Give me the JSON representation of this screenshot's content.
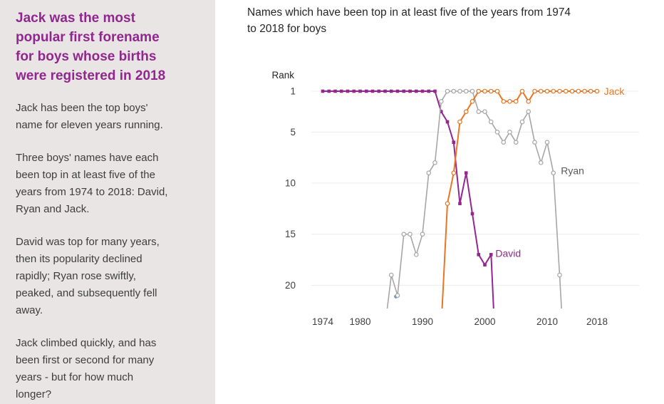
{
  "sidebar": {
    "heading": "Jack was the most\npopular first forename\nfor boys whose births\nwere registered in 2018",
    "paragraphs": [
      "Jack has been the top boys'\nname for eleven years running.",
      "Three boys' names have each\nbeen top in at least five of the\nyears from 1974 to 2018: David,\nRyan and Jack.",
      "David was top for many years,\nthen its popularity declined\nrapidly; Ryan rose swiftly,\npeaked, and subsequently fell\naway.",
      "Jack climbed quickly, and has\nbeen first or second for many\nyears - but for how much\nlonger?"
    ]
  },
  "chart_data": {
    "type": "line",
    "title": "Names which have been top in at least five of the years from 1974\nto 2018 for boys",
    "xlabel": "",
    "ylabel": "Rank",
    "x_ticks": [
      1974,
      1980,
      1990,
      2000,
      2010,
      2018
    ],
    "y_ticks": [
      1,
      5,
      10,
      15,
      20
    ],
    "xlim": [
      1974,
      2018
    ],
    "ylim": [
      1,
      21
    ],
    "y_axis_reversed": true,
    "grid": "horizontal",
    "legend_position": "line-end-labels",
    "series": [
      {
        "name": "David",
        "color": "#93278F",
        "marker": "filled-square",
        "years": [
          1974,
          1975,
          1976,
          1977,
          1978,
          1979,
          1980,
          1981,
          1982,
          1983,
          1984,
          1985,
          1986,
          1987,
          1988,
          1989,
          1990,
          1991,
          1992,
          1993,
          1994,
          1995,
          1996,
          1997,
          1998,
          1999,
          2000,
          2001,
          2002
        ],
        "ranks": [
          1,
          1,
          1,
          1,
          1,
          1,
          1,
          1,
          1,
          1,
          1,
          1,
          1,
          1,
          1,
          1,
          1,
          1,
          1,
          3,
          4,
          6,
          12,
          9,
          13,
          17,
          18,
          17,
          30
        ]
      },
      {
        "name": "Ryan",
        "color": "#A6A6A6",
        "marker": "open-circle",
        "years": [
          1984,
          1985,
          1986,
          1987,
          1988,
          1989,
          1990,
          1991,
          1992,
          1993,
          1994,
          1995,
          1996,
          1997,
          1998,
          1999,
          2000,
          2001,
          2002,
          2003,
          2004,
          2005,
          2006,
          2007,
          2008,
          2009,
          2010,
          2011,
          2012,
          2013
        ],
        "ranks": [
          24,
          19,
          21,
          15,
          15,
          17,
          15,
          9,
          8,
          2,
          1,
          1,
          1,
          1,
          1,
          3,
          3,
          4,
          5,
          6,
          5,
          6,
          4,
          3,
          6,
          8,
          6,
          9,
          19,
          30
        ]
      },
      {
        "name": "Jack",
        "color": "#E87624",
        "marker": "open-circle",
        "years": [
          1993,
          1994,
          1995,
          1996,
          1997,
          1998,
          1999,
          2000,
          2001,
          2002,
          2003,
          2004,
          2005,
          2006,
          2007,
          2008,
          2009,
          2010,
          2011,
          2012,
          2013,
          2014,
          2015,
          2016,
          2017,
          2018
        ],
        "ranks": [
          24,
          12,
          9,
          4,
          3,
          2,
          1,
          1,
          1,
          1,
          2,
          2,
          2,
          1,
          2,
          1,
          1,
          1,
          1,
          1,
          1,
          1,
          1,
          1,
          1,
          1
        ]
      }
    ],
    "annotations": [
      {
        "text": "David",
        "year": 2001.7,
        "rank": 16.9,
        "color": "#93278F"
      },
      {
        "text": "Ryan",
        "year": 2012.2,
        "rank": 8.8,
        "color": "#595959"
      },
      {
        "text": "Jack",
        "year": 2019.1,
        "rank": 1.05,
        "color": "#E87624"
      }
    ],
    "stray_point": {
      "year": 1985.75,
      "rank": 21.1,
      "color": "#6A8FC0"
    }
  },
  "colors": {
    "sidebar_background": "#EAE5E5",
    "heading": "#90278E",
    "body_text": "#3D3D3D",
    "title_text": "#262626",
    "tick_text": "#404040",
    "gridline": "#ECECEC"
  }
}
